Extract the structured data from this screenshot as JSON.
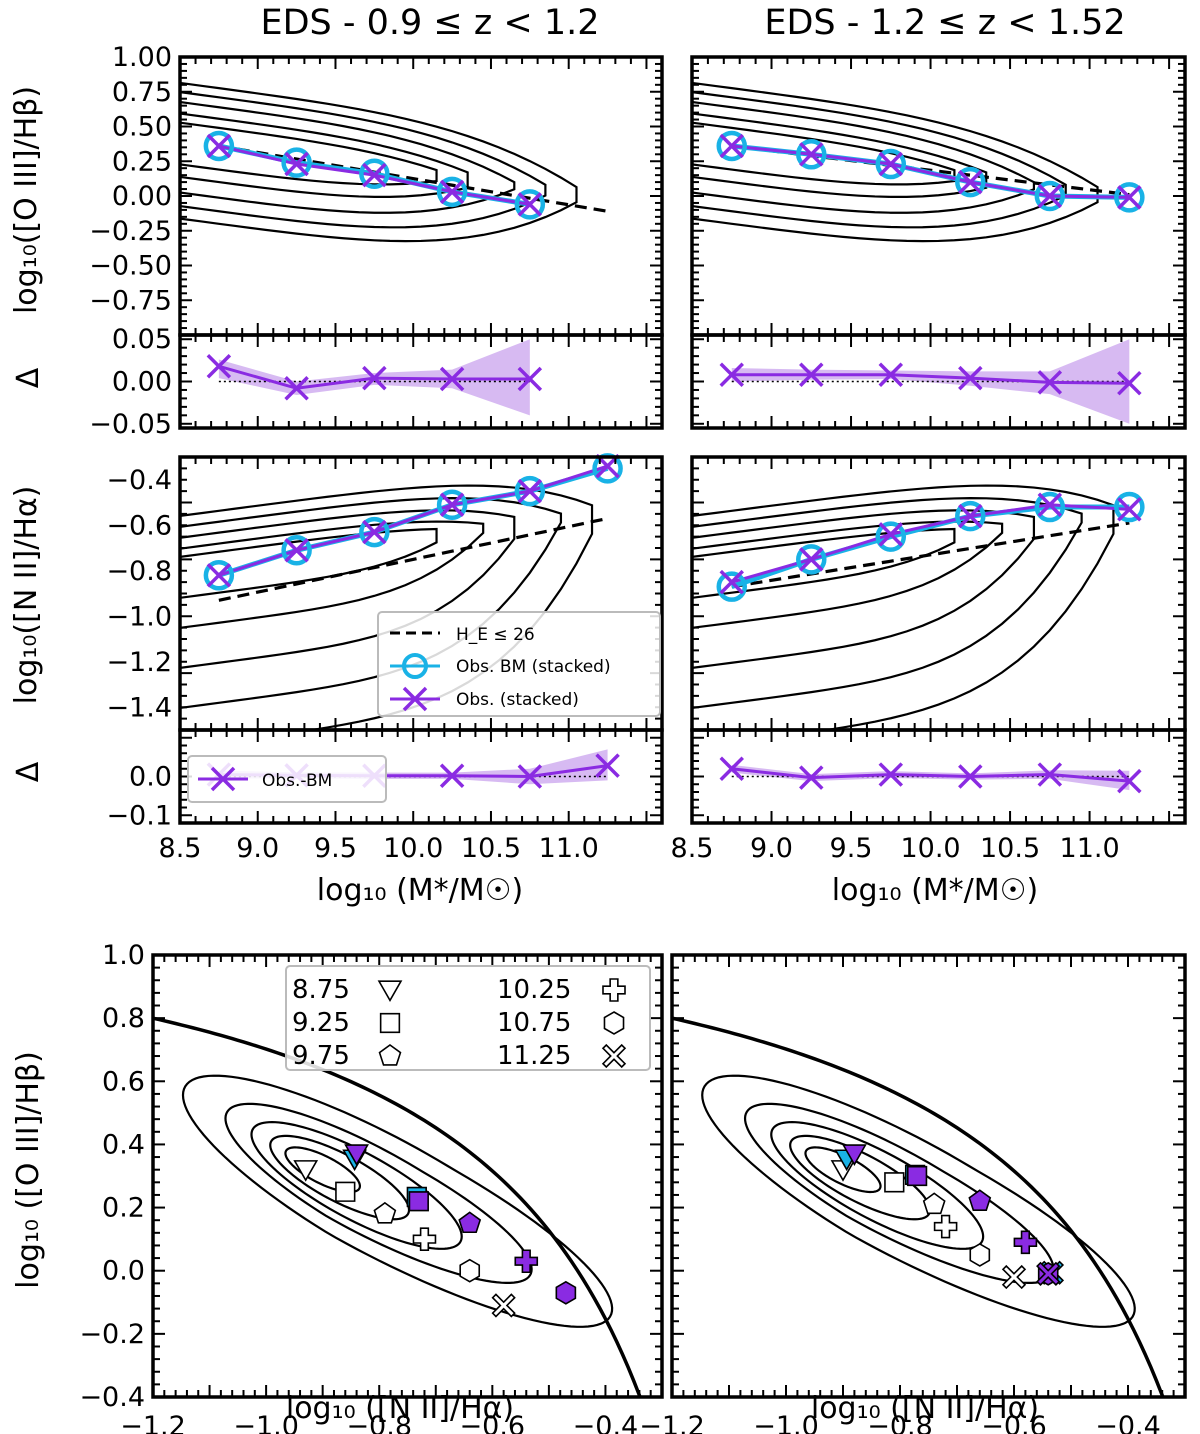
{
  "titles": {
    "left": "EDS - 0.9 ≤ z < 1.2",
    "right": "EDS - 1.2 ≤ z < 1.52"
  },
  "labels": {
    "o3hb": "log₁₀([O III]/Hβ)",
    "n2ha": "log₁₀([N II]/Hα)",
    "delta": "Δ",
    "mass_x": "log₁₀ (M*/M☉)",
    "bpt_x": "log₁₀ ([N II]/Hα)",
    "bpt_y": "log₁₀ ([O III]/Hβ)"
  },
  "legend": {
    "dashed": "H_E ≤ 26",
    "circle": "Obs. BM (stacked)",
    "cross": "Obs. (stacked)",
    "resid": "Obs.-BM"
  },
  "bpt_legend": [
    {
      "mass": "8.75",
      "marker": "triangle-down"
    },
    {
      "mass": "9.25",
      "marker": "square"
    },
    {
      "mass": "9.75",
      "marker": "pentagon"
    },
    {
      "mass": "10.25",
      "marker": "plus"
    },
    {
      "mass": "10.75",
      "marker": "hexagon"
    },
    {
      "mass": "11.25",
      "marker": "x"
    }
  ],
  "colors": {
    "purple": "#8a2be2",
    "cyan": "#19b2e6",
    "band": "#c9a3ee"
  },
  "chart_data": [
    {
      "panel": "top-left-o3hb",
      "type": "line",
      "xlim": [
        8.5,
        11.6
      ],
      "ylim": [
        -1.0,
        1.0
      ],
      "x": [
        8.75,
        9.25,
        9.75,
        10.25,
        10.75
      ],
      "series": [
        {
          "name": "Obs. BM (stacked)",
          "values": [
            0.36,
            0.24,
            0.16,
            0.03,
            -0.06
          ]
        },
        {
          "name": "Obs. (stacked)",
          "values": [
            0.36,
            0.23,
            0.15,
            0.03,
            -0.06
          ]
        },
        {
          "name": "H_E ≤ 26",
          "x": [
            8.75,
            11.25
          ],
          "values": [
            0.36,
            -0.11
          ]
        }
      ],
      "yticks": [
        "-0.75",
        "-0.50",
        "-0.25",
        "0.00",
        "0.25",
        "0.50",
        "0.75",
        "1.00"
      ]
    },
    {
      "panel": "top-right-o3hb",
      "type": "line",
      "xlim": [
        8.5,
        11.6
      ],
      "ylim": [
        -1.0,
        1.0
      ],
      "x": [
        8.75,
        9.25,
        9.75,
        10.25,
        10.75,
        11.25
      ],
      "series": [
        {
          "name": "Obs. BM (stacked)",
          "values": [
            0.36,
            0.3,
            0.23,
            0.1,
            0.0,
            -0.01
          ]
        },
        {
          "name": "Obs. (stacked)",
          "values": [
            0.36,
            0.3,
            0.23,
            0.1,
            0.0,
            -0.01
          ]
        },
        {
          "name": "H_E ≤ 26",
          "x": [
            8.75,
            11.25
          ],
          "values": [
            0.36,
            0.01
          ]
        }
      ]
    },
    {
      "panel": "delta-top-left",
      "type": "line",
      "xlim": [
        8.5,
        11.6
      ],
      "ylim": [
        -0.055,
        0.055
      ],
      "x": [
        8.75,
        9.25,
        9.75,
        10.25,
        10.75
      ],
      "values": [
        0.018,
        -0.008,
        0.004,
        0.003,
        0.003
      ],
      "band_lower": [
        0.004,
        -0.016,
        -0.004,
        -0.008,
        -0.04
      ],
      "band_upper": [
        0.026,
        0.0,
        0.01,
        0.014,
        0.05
      ],
      "yticks": [
        "-0.05",
        "0.00",
        "0.05"
      ]
    },
    {
      "panel": "delta-top-right",
      "type": "line",
      "xlim": [
        8.5,
        11.6
      ],
      "ylim": [
        -0.055,
        0.055
      ],
      "x": [
        8.75,
        9.25,
        9.75,
        10.25,
        10.75,
        11.25
      ],
      "values": [
        0.008,
        0.008,
        0.008,
        0.004,
        -0.001,
        -0.002
      ],
      "band_lower": [
        0.0,
        0.002,
        0.003,
        -0.005,
        -0.015,
        -0.05
      ],
      "band_upper": [
        0.016,
        0.014,
        0.013,
        0.012,
        0.012,
        0.05
      ]
    },
    {
      "panel": "mid-left-n2ha",
      "type": "line",
      "xlim": [
        8.5,
        11.6
      ],
      "ylim": [
        -1.5,
        -0.3
      ],
      "x": [
        8.75,
        9.25,
        9.75,
        10.25,
        10.75,
        11.25
      ],
      "series": [
        {
          "name": "Obs. BM (stacked)",
          "values": [
            -0.82,
            -0.71,
            -0.63,
            -0.51,
            -0.45,
            -0.35
          ]
        },
        {
          "name": "Obs. (stacked)",
          "values": [
            -0.82,
            -0.71,
            -0.63,
            -0.51,
            -0.45,
            -0.34
          ]
        },
        {
          "name": "H_E ≤ 26",
          "x": [
            8.75,
            11.25
          ],
          "values": [
            -0.93,
            -0.57
          ]
        }
      ],
      "yticks": [
        "-1.4",
        "-1.2",
        "-1.0",
        "-0.8",
        "-0.6",
        "-0.4"
      ]
    },
    {
      "panel": "mid-right-n2ha",
      "type": "line",
      "xlim": [
        8.5,
        11.6
      ],
      "ylim": [
        -1.5,
        -0.3
      ],
      "x": [
        8.75,
        9.25,
        9.75,
        10.25,
        10.75,
        11.25
      ],
      "series": [
        {
          "name": "Obs. BM (stacked)",
          "values": [
            -0.87,
            -0.75,
            -0.65,
            -0.56,
            -0.52,
            -0.52
          ]
        },
        {
          "name": "Obs. (stacked)",
          "values": [
            -0.85,
            -0.75,
            -0.64,
            -0.56,
            -0.51,
            -0.53
          ]
        },
        {
          "name": "H_E ≤ 26",
          "x": [
            8.75,
            11.25
          ],
          "values": [
            -0.87,
            -0.59
          ]
        }
      ]
    },
    {
      "panel": "delta-bottom-left",
      "type": "line",
      "xlim": [
        8.5,
        11.6
      ],
      "ylim": [
        -0.12,
        0.12
      ],
      "x": [
        8.75,
        9.25,
        9.75,
        10.25,
        10.75,
        11.25
      ],
      "values": [
        0.005,
        0.003,
        0.002,
        0.002,
        0.0,
        0.028
      ],
      "band_lower": [
        -0.005,
        -0.005,
        -0.006,
        -0.006,
        -0.02,
        -0.01
      ],
      "band_upper": [
        0.015,
        0.011,
        0.01,
        0.01,
        0.02,
        0.07
      ],
      "yticks": [
        "-0.1",
        "0.0"
      ],
      "xticks": [
        "8.5",
        "9.0",
        "9.5",
        "10.0",
        "10.5",
        "11.0"
      ]
    },
    {
      "panel": "delta-bottom-right",
      "type": "line",
      "xlim": [
        8.5,
        11.6
      ],
      "ylim": [
        -0.12,
        0.12
      ],
      "x": [
        8.75,
        9.25,
        9.75,
        10.25,
        10.75,
        11.25
      ],
      "values": [
        0.02,
        -0.003,
        0.005,
        0.0,
        0.005,
        -0.012
      ],
      "band_lower": [
        0.01,
        -0.012,
        -0.004,
        -0.008,
        -0.006,
        -0.035
      ],
      "band_upper": [
        0.03,
        0.006,
        0.014,
        0.008,
        0.016,
        0.015
      ],
      "xticks": [
        "8.5",
        "9.0",
        "9.5",
        "10.0",
        "10.5",
        "11.0"
      ]
    },
    {
      "panel": "bpt-left",
      "type": "scatter",
      "xlim": [
        -1.2,
        -0.3
      ],
      "ylim": [
        -0.4,
        1.0
      ],
      "xticks": [
        "-1.2",
        "-1.0",
        "-0.8",
        "-0.6",
        "-0.4"
      ],
      "yticks": [
        "-0.4",
        "-0.2",
        "0.0",
        "0.2",
        "0.4",
        "0.6",
        "0.8",
        "1.0"
      ],
      "open_points": [
        {
          "mass": "8.75",
          "x": -0.93,
          "y": 0.32
        },
        {
          "mass": "9.25",
          "x": -0.86,
          "y": 0.25
        },
        {
          "mass": "9.75",
          "x": -0.79,
          "y": 0.18
        },
        {
          "mass": "10.25",
          "x": -0.72,
          "y": 0.1
        },
        {
          "mass": "10.75",
          "x": -0.64,
          "y": 0.0
        },
        {
          "mass": "11.25",
          "x": -0.58,
          "y": -0.11
        }
      ],
      "cyan_points": [
        {
          "mass": "8.75",
          "x": -0.84,
          "y": 0.36
        },
        {
          "mass": "9.25",
          "x": -0.73,
          "y": 0.24
        }
      ],
      "purple_points": [
        {
          "mass": "8.75",
          "x": -0.84,
          "y": 0.37
        },
        {
          "mass": "9.25",
          "x": -0.73,
          "y": 0.22
        },
        {
          "mass": "9.75",
          "x": -0.64,
          "y": 0.15
        },
        {
          "mass": "10.25",
          "x": -0.54,
          "y": 0.03
        },
        {
          "mass": "10.75",
          "x": -0.47,
          "y": -0.07
        }
      ]
    },
    {
      "panel": "bpt-right",
      "type": "scatter",
      "xlim": [
        -1.2,
        -0.3
      ],
      "ylim": [
        -0.4,
        1.0
      ],
      "xticks": [
        "-1.2",
        "-1.0",
        "-0.8",
        "-0.6",
        "-0.4"
      ],
      "open_points": [
        {
          "mass": "8.75",
          "x": -0.9,
          "y": 0.32
        },
        {
          "mass": "9.25",
          "x": -0.81,
          "y": 0.28
        },
        {
          "mass": "9.75",
          "x": -0.74,
          "y": 0.21
        },
        {
          "mass": "10.25",
          "x": -0.72,
          "y": 0.14
        },
        {
          "mass": "10.75",
          "x": -0.66,
          "y": 0.05
        },
        {
          "mass": "11.25",
          "x": -0.6,
          "y": -0.02
        }
      ],
      "cyan_points": [
        {
          "mass": "8.75",
          "x": -0.89,
          "y": 0.36
        },
        {
          "mass": "9.25",
          "x": -0.77,
          "y": 0.31
        },
        {
          "mass": "11.25",
          "x": -0.53,
          "y": 0.0
        }
      ],
      "purple_points": [
        {
          "mass": "8.75",
          "x": -0.88,
          "y": 0.37
        },
        {
          "mass": "9.25",
          "x": -0.77,
          "y": 0.3
        },
        {
          "mass": "9.75",
          "x": -0.66,
          "y": 0.22
        },
        {
          "mass": "10.25",
          "x": -0.58,
          "y": 0.09
        },
        {
          "mass": "10.75",
          "x": -0.54,
          "y": -0.01
        },
        {
          "mass": "11.25",
          "x": -0.54,
          "y": -0.01
        }
      ]
    }
  ]
}
